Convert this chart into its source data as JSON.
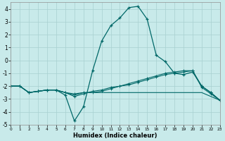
{
  "xlabel": "Humidex (Indice chaleur)",
  "background_color": "#c8eaea",
  "grid_color": "#a8d0d0",
  "line_color": "#006868",
  "xlim": [
    0,
    23
  ],
  "ylim": [
    -5,
    4.5
  ],
  "xtick_vals": [
    0,
    1,
    2,
    3,
    4,
    5,
    6,
    7,
    8,
    9,
    10,
    11,
    12,
    13,
    14,
    15,
    16,
    17,
    18,
    19,
    20,
    21,
    22,
    23
  ],
  "ytick_vals": [
    -5,
    -4,
    -3,
    -2,
    -1,
    0,
    1,
    2,
    3,
    4
  ],
  "line1_x": [
    0,
    1,
    2,
    3,
    4,
    5,
    6,
    7,
    8,
    9,
    10,
    11,
    12,
    13,
    14,
    15,
    16,
    17,
    18,
    19,
    20,
    21,
    22,
    23
  ],
  "line1_y": [
    -2.0,
    -2.0,
    -2.5,
    -2.4,
    -2.3,
    -2.3,
    -2.7,
    -4.7,
    -3.6,
    -0.8,
    1.5,
    2.7,
    3.3,
    4.1,
    4.2,
    3.2,
    0.4,
    -0.1,
    -1.0,
    -1.1,
    -0.9,
    -2.0,
    -2.5,
    -3.1
  ],
  "line2_x": [
    0,
    1,
    2,
    3,
    4,
    5,
    6,
    7,
    8,
    9,
    10,
    11,
    12,
    13,
    14,
    15,
    16,
    17,
    18,
    19,
    20,
    21,
    22,
    23
  ],
  "line2_y": [
    -2.0,
    -2.0,
    -2.5,
    -2.4,
    -2.3,
    -2.3,
    -2.5,
    -2.6,
    -2.5,
    -2.5,
    -2.4,
    -2.2,
    -2.0,
    -1.8,
    -1.6,
    -1.4,
    -1.2,
    -1.0,
    -0.9,
    -0.8,
    -0.8,
    -2.0,
    -2.5,
    -3.1
  ],
  "line3_x": [
    0,
    1,
    2,
    3,
    4,
    5,
    6,
    7,
    8,
    9,
    10,
    11,
    12,
    13,
    14,
    15,
    16,
    17,
    18,
    19,
    20,
    21,
    22,
    23
  ],
  "line3_y": [
    -2.0,
    -2.0,
    -2.5,
    -2.4,
    -2.3,
    -2.3,
    -2.5,
    -2.7,
    -2.5,
    -2.5,
    -2.5,
    -2.5,
    -2.5,
    -2.5,
    -2.5,
    -2.5,
    -2.5,
    -2.5,
    -2.5,
    -2.5,
    -2.5,
    -2.5,
    -2.8,
    -3.1
  ],
  "line4_x": [
    0,
    1,
    2,
    3,
    4,
    5,
    6,
    7,
    8,
    9,
    10,
    11,
    12,
    13,
    14,
    15,
    16,
    17,
    18,
    19,
    20,
    21,
    22,
    23
  ],
  "line4_y": [
    -2.0,
    -2.0,
    -2.5,
    -2.4,
    -2.3,
    -2.3,
    -2.5,
    -2.8,
    -2.6,
    -2.4,
    -2.3,
    -2.1,
    -2.0,
    -1.9,
    -1.7,
    -1.5,
    -1.3,
    -1.1,
    -1.0,
    -0.9,
    -0.8,
    -2.1,
    -2.6,
    -3.1
  ]
}
